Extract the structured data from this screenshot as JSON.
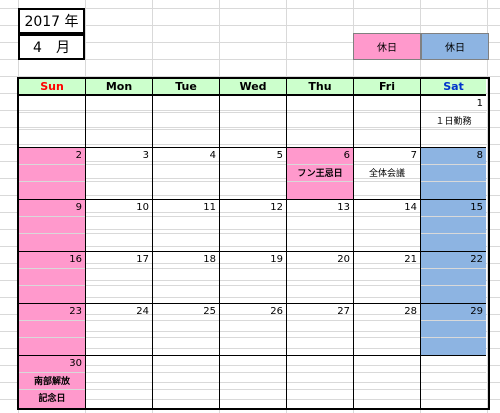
{
  "year_label": "2017 年",
  "month_label": "4　月",
  "legend": {
    "sunday_holiday": "休日",
    "saturday_holiday": "休日"
  },
  "weekdays": [
    "Sun",
    "Mon",
    "Tue",
    "Wed",
    "Thu",
    "Fri",
    "Sat"
  ],
  "weeks": [
    [
      {
        "day": "",
        "type": "normal",
        "note": ""
      },
      {
        "day": "",
        "type": "normal",
        "note": ""
      },
      {
        "day": "",
        "type": "normal",
        "note": ""
      },
      {
        "day": "",
        "type": "normal",
        "note": ""
      },
      {
        "day": "",
        "type": "normal",
        "note": ""
      },
      {
        "day": "",
        "type": "normal",
        "note": ""
      },
      {
        "day": "1",
        "type": "normal",
        "note": "１日勤務"
      }
    ],
    [
      {
        "day": "2",
        "type": "sunday",
        "note": ""
      },
      {
        "day": "3",
        "type": "normal",
        "note": ""
      },
      {
        "day": "4",
        "type": "normal",
        "note": ""
      },
      {
        "day": "5",
        "type": "normal",
        "note": ""
      },
      {
        "day": "6",
        "type": "holiday",
        "note": "フン王忌日"
      },
      {
        "day": "7",
        "type": "normal",
        "note": "全体会議"
      },
      {
        "day": "8",
        "type": "saturday",
        "note": ""
      }
    ],
    [
      {
        "day": "9",
        "type": "sunday",
        "note": ""
      },
      {
        "day": "10",
        "type": "normal",
        "note": ""
      },
      {
        "day": "11",
        "type": "normal",
        "note": ""
      },
      {
        "day": "12",
        "type": "normal",
        "note": ""
      },
      {
        "day": "13",
        "type": "normal",
        "note": ""
      },
      {
        "day": "14",
        "type": "normal",
        "note": ""
      },
      {
        "day": "15",
        "type": "saturday",
        "note": ""
      }
    ],
    [
      {
        "day": "16",
        "type": "sunday",
        "note": ""
      },
      {
        "day": "17",
        "type": "normal",
        "note": ""
      },
      {
        "day": "18",
        "type": "normal",
        "note": ""
      },
      {
        "day": "19",
        "type": "normal",
        "note": ""
      },
      {
        "day": "20",
        "type": "normal",
        "note": ""
      },
      {
        "day": "21",
        "type": "normal",
        "note": ""
      },
      {
        "day": "22",
        "type": "saturday",
        "note": ""
      }
    ],
    [
      {
        "day": "23",
        "type": "sunday",
        "note": ""
      },
      {
        "day": "24",
        "type": "normal",
        "note": ""
      },
      {
        "day": "25",
        "type": "normal",
        "note": ""
      },
      {
        "day": "26",
        "type": "normal",
        "note": ""
      },
      {
        "day": "27",
        "type": "normal",
        "note": ""
      },
      {
        "day": "28",
        "type": "normal",
        "note": ""
      },
      {
        "day": "29",
        "type": "saturday",
        "note": ""
      }
    ],
    [
      {
        "day": "30",
        "type": "sunday",
        "note": "南部解放\n記念日"
      },
      {
        "day": "",
        "type": "normal",
        "note": ""
      },
      {
        "day": "",
        "type": "normal",
        "note": ""
      },
      {
        "day": "",
        "type": "normal",
        "note": ""
      },
      {
        "day": "",
        "type": "normal",
        "note": ""
      },
      {
        "day": "",
        "type": "normal",
        "note": ""
      },
      {
        "day": "",
        "type": "normal",
        "note": ""
      }
    ]
  ],
  "colors": {
    "header_bg": "#ccffcc",
    "sunday_bg": "#ff99cc",
    "saturday_bg": "#8db4e2",
    "sunday_text": "#ff0000",
    "saturday_text": "#0033cc"
  }
}
